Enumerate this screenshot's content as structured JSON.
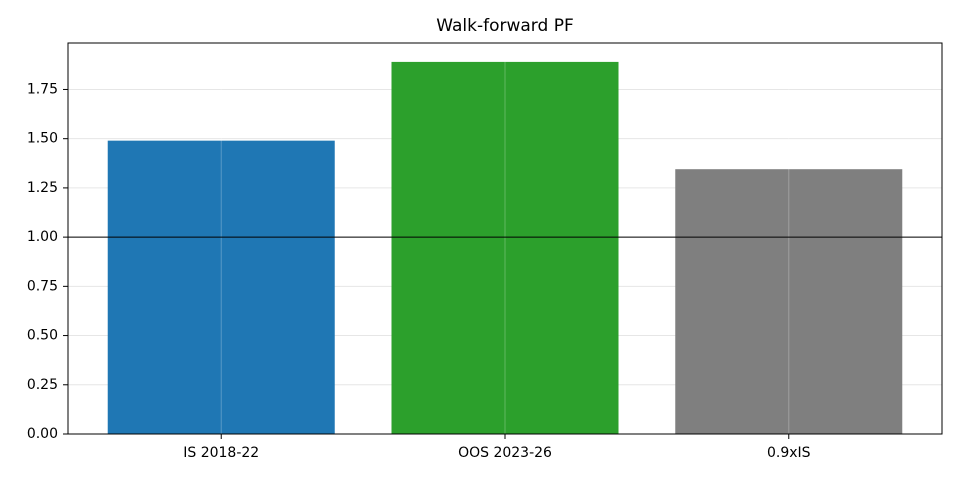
{
  "chart_data": {
    "type": "bar",
    "title": "Walk-forward PF",
    "categories": [
      "IS 2018-22",
      "OOS 2023-26",
      "0.9xIS"
    ],
    "values": [
      1.49,
      1.89,
      1.345
    ],
    "colors": [
      "#1f77b4",
      "#2ca02c",
      "#7f7f7f"
    ],
    "ylim": [
      0,
      1.986
    ],
    "yticks": [
      {
        "value": 0,
        "label": "0.00"
      },
      {
        "value": 0.25,
        "label": "0.25"
      },
      {
        "value": 0.5,
        "label": "0.50"
      },
      {
        "value": 0.75,
        "label": "0.75"
      },
      {
        "value": 1,
        "label": "1.00"
      },
      {
        "value": 1.25,
        "label": "1.25"
      },
      {
        "value": 1.5,
        "label": "1.50"
      },
      {
        "value": 1.75,
        "label": "1.75"
      }
    ],
    "reference_line": 1,
    "grid": true
  }
}
